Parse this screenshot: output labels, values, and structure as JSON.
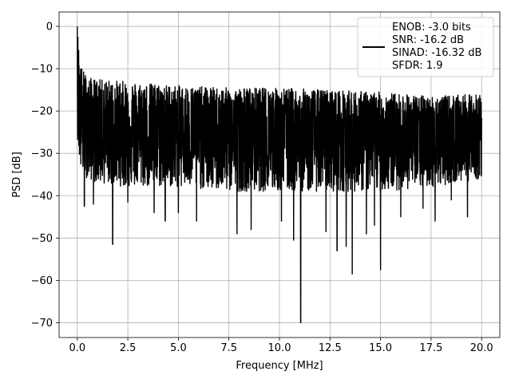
{
  "chart_data": {
    "type": "line",
    "xlabel": "Frequency [MHz]",
    "ylabel": "PSD [dB]",
    "xlim": [
      -0.9,
      20.9
    ],
    "ylim": [
      -73.5,
      3.4
    ],
    "xticks": [
      0.0,
      2.5,
      5.0,
      7.5,
      10.0,
      12.5,
      15.0,
      17.5,
      20.0
    ],
    "xtick_labels": [
      "0.0",
      "2.5",
      "5.0",
      "7.5",
      "10.0",
      "12.5",
      "15.0",
      "17.5",
      "20.0"
    ],
    "yticks": [
      0,
      -10,
      -20,
      -30,
      -40,
      -50,
      -60,
      -70
    ],
    "ytick_labels": [
      "0",
      "−10",
      "−20",
      "−30",
      "−40",
      "−50",
      "−60",
      "−70"
    ],
    "grid": true,
    "legend_position": "top-right",
    "line_color": "#000000",
    "series": [
      {
        "name": "ENOB: -3.0 bits\nSNR: -16.2 dB\nSINAD: -16.32 dB\nSFDR: 1.9",
        "x_range": [
          0.0,
          20.0
        ],
        "peak": {
          "x": 0.0,
          "y": 0.0
        },
        "envelope": {
          "x": [
            0.0,
            0.15,
            0.5,
            1.0,
            2.5,
            5.0,
            7.5,
            10.0,
            12.5,
            15.0,
            17.5,
            20.0
          ],
          "upper": [
            0.0,
            -9.0,
            -12.0,
            -12.5,
            -13.0,
            -14.0,
            -14.5,
            -14.5,
            -15.0,
            -15.5,
            -16.5,
            -16.0
          ],
          "lower": [
            -26.0,
            -34.0,
            -36.0,
            -37.0,
            -38.0,
            -38.0,
            -39.0,
            -39.0,
            -39.0,
            -39.0,
            -38.0,
            -36.0
          ],
          "mean": [
            -10.0,
            -22.0,
            -24.0,
            -24.5,
            -25.0,
            -25.5,
            -26.0,
            -26.0,
            -26.0,
            -26.5,
            -26.5,
            -26.0
          ]
        },
        "notable_dips": [
          {
            "x": 0.35,
            "y": -42.5
          },
          {
            "x": 0.8,
            "y": -42.0
          },
          {
            "x": 1.75,
            "y": -51.5
          },
          {
            "x": 2.5,
            "y": -41.5
          },
          {
            "x": 3.8,
            "y": -44.0
          },
          {
            "x": 4.35,
            "y": -46.0
          },
          {
            "x": 5.0,
            "y": -44.0
          },
          {
            "x": 5.9,
            "y": -46.0
          },
          {
            "x": 7.9,
            "y": -49.0
          },
          {
            "x": 8.6,
            "y": -48.0
          },
          {
            "x": 10.1,
            "y": -46.0
          },
          {
            "x": 10.7,
            "y": -50.5
          },
          {
            "x": 11.05,
            "y": -70.0
          },
          {
            "x": 12.3,
            "y": -48.5
          },
          {
            "x": 12.85,
            "y": -53.0
          },
          {
            "x": 13.3,
            "y": -52.0
          },
          {
            "x": 13.6,
            "y": -58.5
          },
          {
            "x": 14.3,
            "y": -49.0
          },
          {
            "x": 14.7,
            "y": -47.0
          },
          {
            "x": 15.0,
            "y": -57.5
          },
          {
            "x": 16.0,
            "y": -45.0
          },
          {
            "x": 17.1,
            "y": -43.0
          },
          {
            "x": 17.7,
            "y": -46.0
          },
          {
            "x": 18.5,
            "y": -41.0
          },
          {
            "x": 19.3,
            "y": -45.0
          }
        ]
      }
    ]
  }
}
